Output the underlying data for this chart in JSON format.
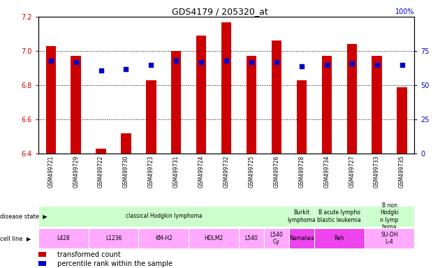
{
  "title": "GDS4179 / 205320_at",
  "samples": [
    "GSM499721",
    "GSM499729",
    "GSM499722",
    "GSM499730",
    "GSM499723",
    "GSM499731",
    "GSM499724",
    "GSM499732",
    "GSM499725",
    "GSM499726",
    "GSM499728",
    "GSM499734",
    "GSM499727",
    "GSM499733",
    "GSM499735"
  ],
  "transformed_count": [
    7.03,
    6.97,
    6.43,
    6.52,
    6.83,
    7.0,
    7.09,
    7.17,
    6.97,
    7.06,
    6.83,
    6.97,
    7.04,
    6.97,
    6.79
  ],
  "percentile_rank": [
    68,
    67,
    61,
    62,
    65,
    68,
    67,
    68,
    67,
    67,
    64,
    65,
    66,
    65,
    65
  ],
  "ylim_left": [
    6.4,
    7.2
  ],
  "ylim_right": [
    0,
    100
  ],
  "yticks_left": [
    6.4,
    6.6,
    6.8,
    7.0,
    7.2
  ],
  "yticks_right": [
    0,
    25,
    50,
    75,
    100
  ],
  "bar_color": "#cc0000",
  "dot_color": "#0000cc",
  "bar_base": 6.4,
  "disease_state_groups": [
    {
      "label": "classical Hodgkin lymphoma",
      "start": 0,
      "end": 9,
      "color": "#ccffcc"
    },
    {
      "label": "Burkit\nlymphoma",
      "start": 10,
      "end": 10,
      "color": "#ccffcc"
    },
    {
      "label": "B acute lympho\nblastic leukemia",
      "start": 11,
      "end": 12,
      "color": "#ccffcc"
    },
    {
      "label": "B non\nHodgki\nn lymp\nhoma",
      "start": 13,
      "end": 14,
      "color": "#ccffcc"
    }
  ],
  "cell_line_groups": [
    {
      "label": "L428",
      "start": 0,
      "end": 1,
      "color": "#ffaaff"
    },
    {
      "label": "L1236",
      "start": 2,
      "end": 3,
      "color": "#ffaaff"
    },
    {
      "label": "KM-H2",
      "start": 4,
      "end": 5,
      "color": "#ffaaff"
    },
    {
      "label": "HDLM2",
      "start": 6,
      "end": 7,
      "color": "#ffaaff"
    },
    {
      "label": "L540",
      "start": 8,
      "end": 8,
      "color": "#ffaaff"
    },
    {
      "label": "L540\nCy",
      "start": 9,
      "end": 9,
      "color": "#ffaaff"
    },
    {
      "label": "Namalwa",
      "start": 10,
      "end": 10,
      "color": "#ee44ee"
    },
    {
      "label": "Reh",
      "start": 11,
      "end": 12,
      "color": "#ee44ee"
    },
    {
      "label": "SU-DH\nL-4",
      "start": 13,
      "end": 14,
      "color": "#ffaaff"
    }
  ],
  "legend_items": [
    {
      "label": "transformed count",
      "color": "#cc0000"
    },
    {
      "label": "percentile rank within the sample",
      "color": "#0000cc"
    }
  ],
  "bg_color": "#ffffff",
  "tick_color_left": "#cc0000",
  "tick_color_right": "#0000cc",
  "grid_dotted_at": [
    7.0,
    6.8,
    6.6
  ]
}
